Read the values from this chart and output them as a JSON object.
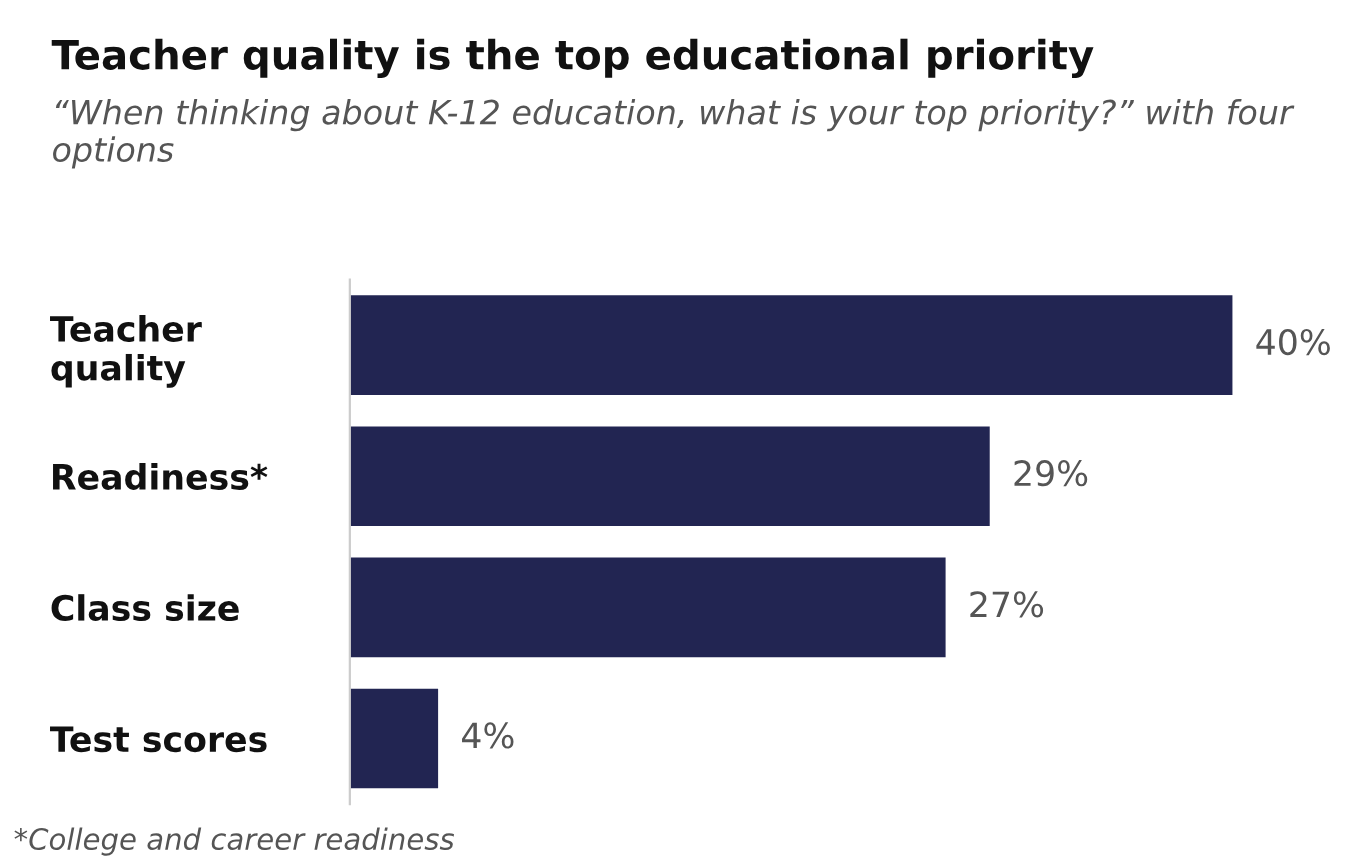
{
  "chart_data": {
    "type": "bar",
    "orientation": "horizontal",
    "title": "Teacher quality is the top educational priority",
    "subtitle": "“When thinking about K-12 education, what is your top priority?” with four options",
    "categories": [
      "Teacher\nquality",
      "Readiness*",
      "Class size",
      "Test scores"
    ],
    "values": [
      40,
      29,
      27,
      4
    ],
    "value_labels": [
      "40%",
      "29%",
      "27%",
      "4%"
    ],
    "color": "#222552",
    "annotations": [
      "*College and career readiness"
    ]
  }
}
